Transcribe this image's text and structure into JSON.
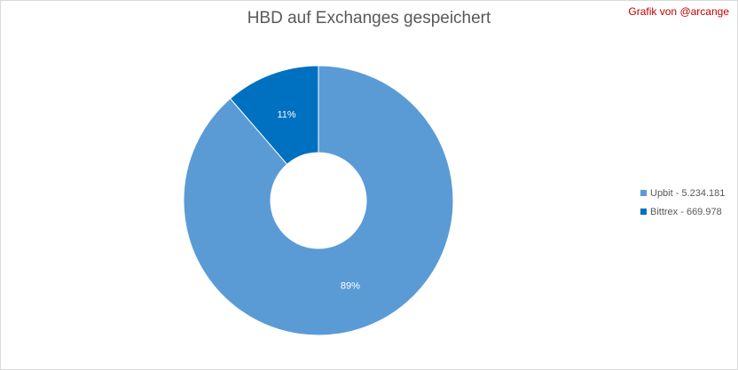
{
  "header": {
    "title": "HBD auf Exchanges gespeichert",
    "credit": "Grafik von @arcange"
  },
  "chart_data": {
    "type": "pie",
    "donut": true,
    "title": "HBD auf Exchanges gespeichert",
    "categories": [
      "Upbit",
      "Bittrex"
    ],
    "values": [
      5234181,
      669978
    ],
    "data_labels": [
      "89%",
      "11%"
    ],
    "legend": {
      "placement": "right",
      "entries": [
        "Upbit - 5.234.181",
        "Bittrex - 669.978"
      ]
    },
    "colors": [
      "#5b9bd5",
      "#0070c0"
    ],
    "label_color": "#ffffff"
  }
}
